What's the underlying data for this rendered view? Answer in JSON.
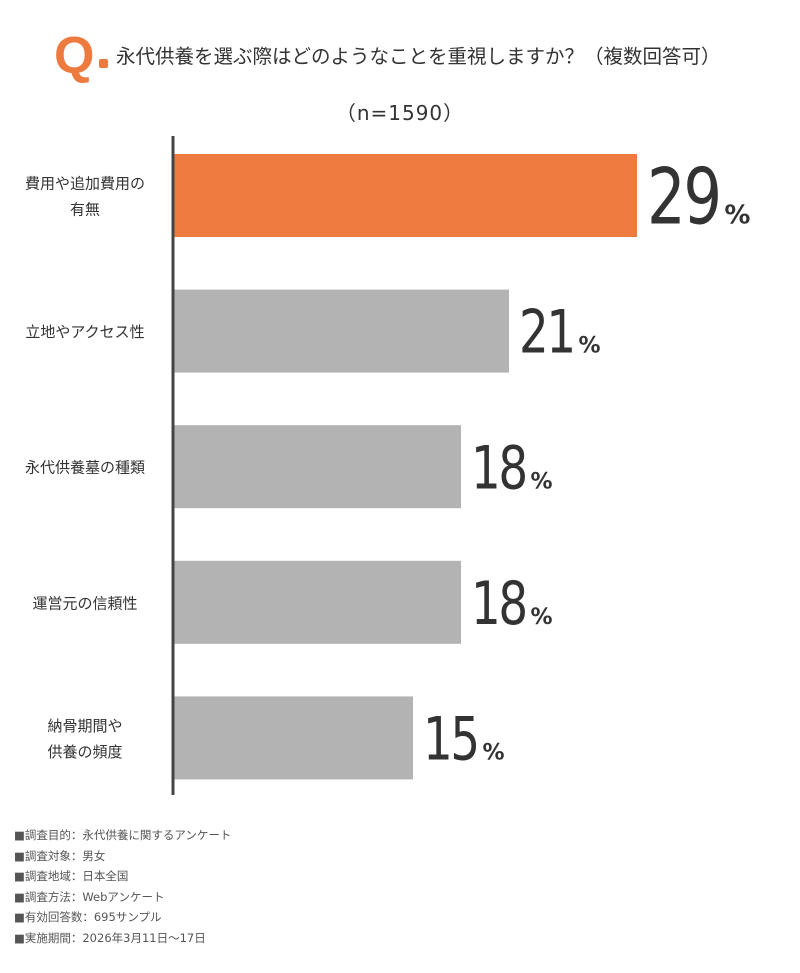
{
  "header": {
    "q_label": "Q",
    "question": "永代供養を選ぶ際はどのようなことを重視しますか？（複数回答可）",
    "sample": "（n=1590）"
  },
  "colors": {
    "accent": "#ED7A3F",
    "bar_default": "#B3B3B3",
    "axis": "#444444",
    "value_text": "#333333"
  },
  "chart_data": {
    "type": "bar",
    "orientation": "horizontal",
    "title": "永代供養を選ぶ際はどのようなことを重視しますか？（複数回答可）",
    "categories": [
      [
        "費用や追加費用の",
        "有無"
      ],
      [
        "立地やアクセス性"
      ],
      [
        "永代供養墓の種類"
      ],
      [
        "運営元の信頼性"
      ],
      [
        "納骨期間や",
        "供養の頻度"
      ]
    ],
    "values": [
      29,
      21,
      18,
      18,
      15
    ],
    "value_labels": [
      "29",
      "21",
      "18",
      "18",
      "15"
    ],
    "unit": "%",
    "highlight_index": 0,
    "xlim": [
      0,
      32
    ],
    "grid": false,
    "legend": "none"
  },
  "footer": {
    "notes": [
      "■調査目的：永代供養に関するアンケート",
      "■調査対象：男女",
      "■調査地域：日本全国",
      "■調査方法：Webアンケート",
      "■有効回答数：695サンプル",
      "■実施期間：2026年3月11日〜17日"
    ]
  }
}
